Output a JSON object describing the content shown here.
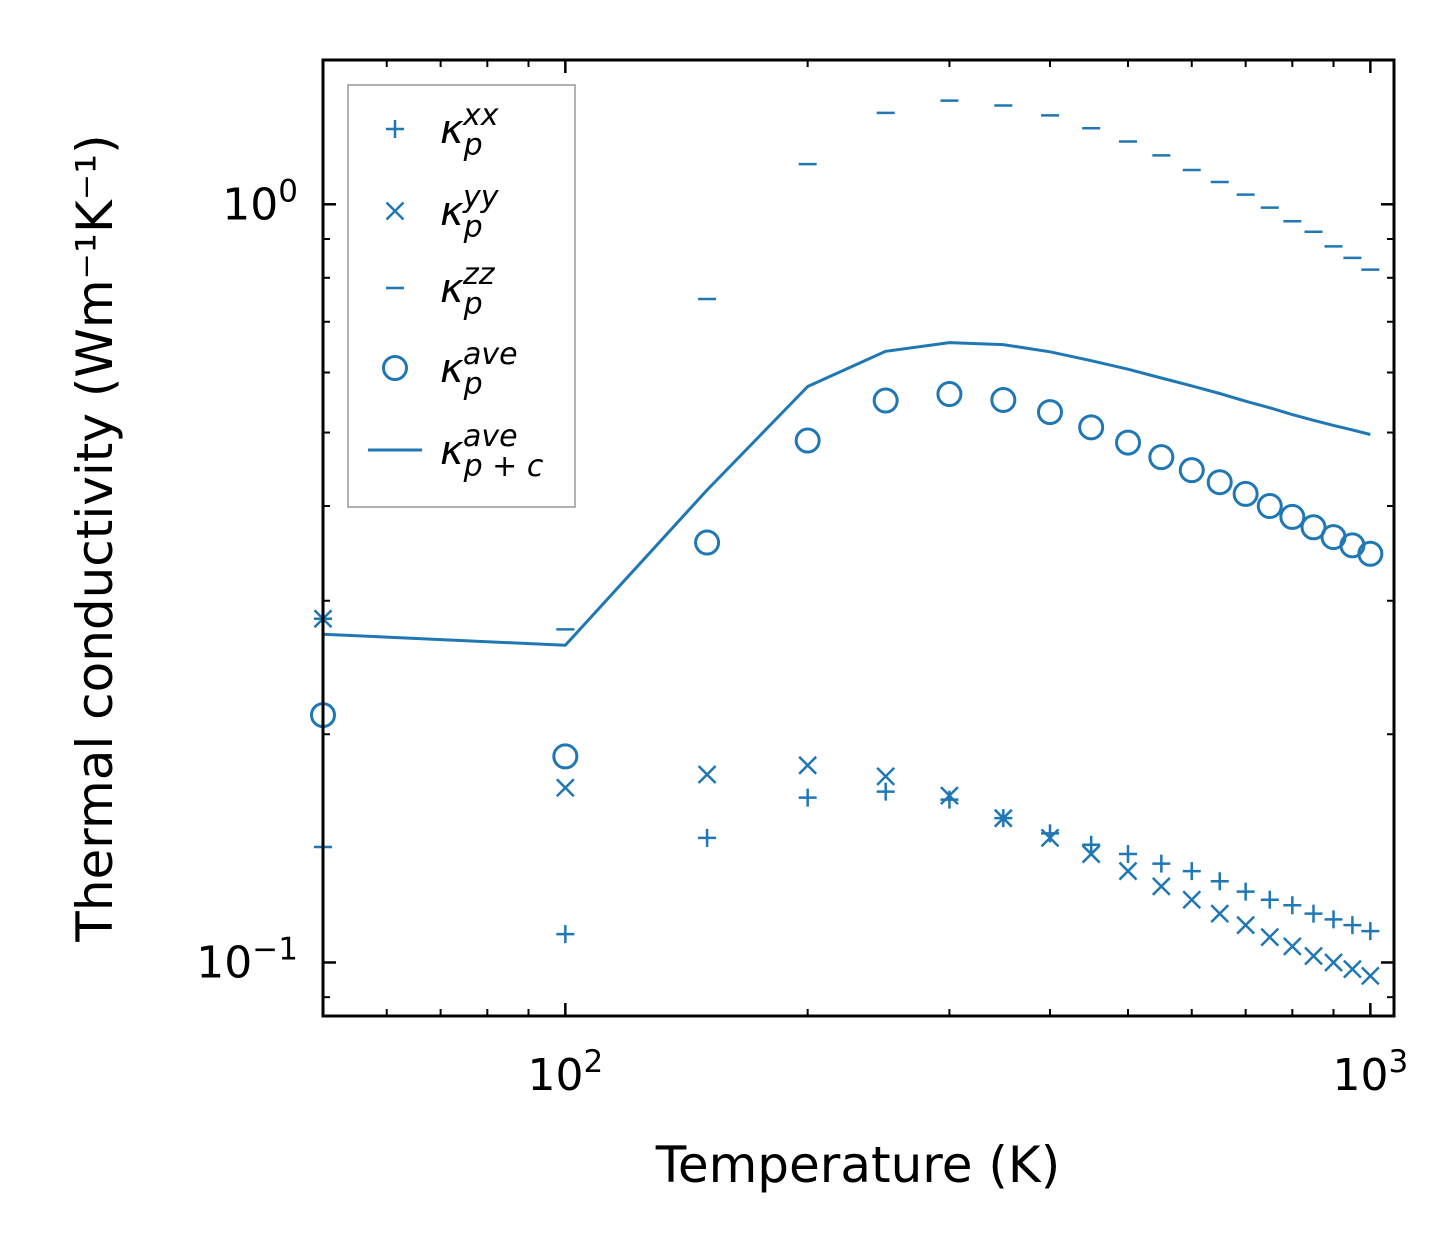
{
  "chart_data": {
    "type": "scatter",
    "xscale": "log",
    "yscale": "log",
    "xlabel": "Temperature (K)",
    "ylabel": "Thermal conductivity (Wm⁻¹K⁻¹)",
    "xlim": [
      50,
      1070
    ],
    "ylim": [
      0.085,
      1.55
    ],
    "legend_position": "top-left",
    "color": "#1f77b4",
    "x_ticks": [
      {
        "value": 100,
        "base": "10",
        "exp": "2"
      },
      {
        "value": 1000,
        "base": "10",
        "exp": "3"
      }
    ],
    "y_ticks": [
      {
        "value": 0.1,
        "base": "10",
        "exp": "−1"
      },
      {
        "value": 1.0,
        "base": "10",
        "exp": "0"
      }
    ],
    "series": [
      {
        "name": "kappa_p_xx",
        "legend_main": "κ",
        "legend_sup": "xx",
        "legend_sub": "p",
        "marker": "plus",
        "x": [
          50,
          100,
          150,
          200,
          250,
          300,
          350,
          400,
          450,
          500,
          550,
          600,
          650,
          700,
          750,
          800,
          850,
          900,
          950,
          1000
        ],
        "values": [
          0.142,
          0.109,
          0.146,
          0.165,
          0.168,
          0.164,
          0.155,
          0.148,
          0.143,
          0.139,
          0.135,
          0.132,
          0.128,
          0.124,
          0.121,
          0.119,
          0.116,
          0.114,
          0.112,
          0.11
        ]
      },
      {
        "name": "kappa_p_yy",
        "legend_main": "κ",
        "legend_sup": "yy",
        "legend_sub": "p",
        "marker": "x",
        "x": [
          50,
          100,
          150,
          200,
          250,
          300,
          350,
          400,
          450,
          500,
          550,
          600,
          650,
          700,
          750,
          800,
          850,
          900,
          950,
          1000
        ],
        "values": [
          0.284,
          0.17,
          0.177,
          0.182,
          0.176,
          0.166,
          0.155,
          0.146,
          0.139,
          0.132,
          0.126,
          0.121,
          0.116,
          0.112,
          0.108,
          0.105,
          0.102,
          0.1,
          0.098,
          0.096
        ]
      },
      {
        "name": "kappa_p_zz",
        "legend_main": "κ",
        "legend_sup": "zz",
        "legend_sub": "p",
        "marker": "hline",
        "x": [
          50,
          100,
          150,
          200,
          250,
          300,
          350,
          400,
          450,
          500,
          550,
          600,
          650,
          700,
          750,
          800,
          850,
          900,
          950,
          1000
        ],
        "values": [
          0.284,
          0.275,
          0.75,
          1.13,
          1.32,
          1.37,
          1.35,
          1.31,
          1.26,
          1.21,
          1.16,
          1.11,
          1.07,
          1.03,
          0.99,
          0.95,
          0.92,
          0.88,
          0.85,
          0.82
        ]
      },
      {
        "name": "kappa_p_ave",
        "legend_main": "κ",
        "legend_sup": "ave",
        "legend_sub": "p",
        "marker": "circle",
        "x": [
          50,
          100,
          150,
          200,
          250,
          300,
          350,
          400,
          450,
          500,
          550,
          600,
          650,
          700,
          750,
          800,
          850,
          900,
          950,
          1000
        ],
        "values": [
          0.212,
          0.187,
          0.358,
          0.488,
          0.551,
          0.562,
          0.552,
          0.532,
          0.508,
          0.485,
          0.464,
          0.446,
          0.43,
          0.415,
          0.4,
          0.387,
          0.375,
          0.364,
          0.355,
          0.346
        ]
      },
      {
        "name": "kappa_pc_ave",
        "legend_main": "κ",
        "legend_sup": "ave",
        "legend_sub": "p + c",
        "marker": "line",
        "x": [
          50,
          100,
          150,
          200,
          250,
          300,
          350,
          400,
          450,
          500,
          550,
          600,
          650,
          700,
          750,
          800,
          850,
          900,
          950,
          1000
        ],
        "values": [
          0.271,
          0.262,
          0.42,
          0.575,
          0.64,
          0.657,
          0.653,
          0.639,
          0.622,
          0.606,
          0.59,
          0.576,
          0.563,
          0.55,
          0.539,
          0.528,
          0.519,
          0.511,
          0.504,
          0.497
        ]
      }
    ]
  }
}
